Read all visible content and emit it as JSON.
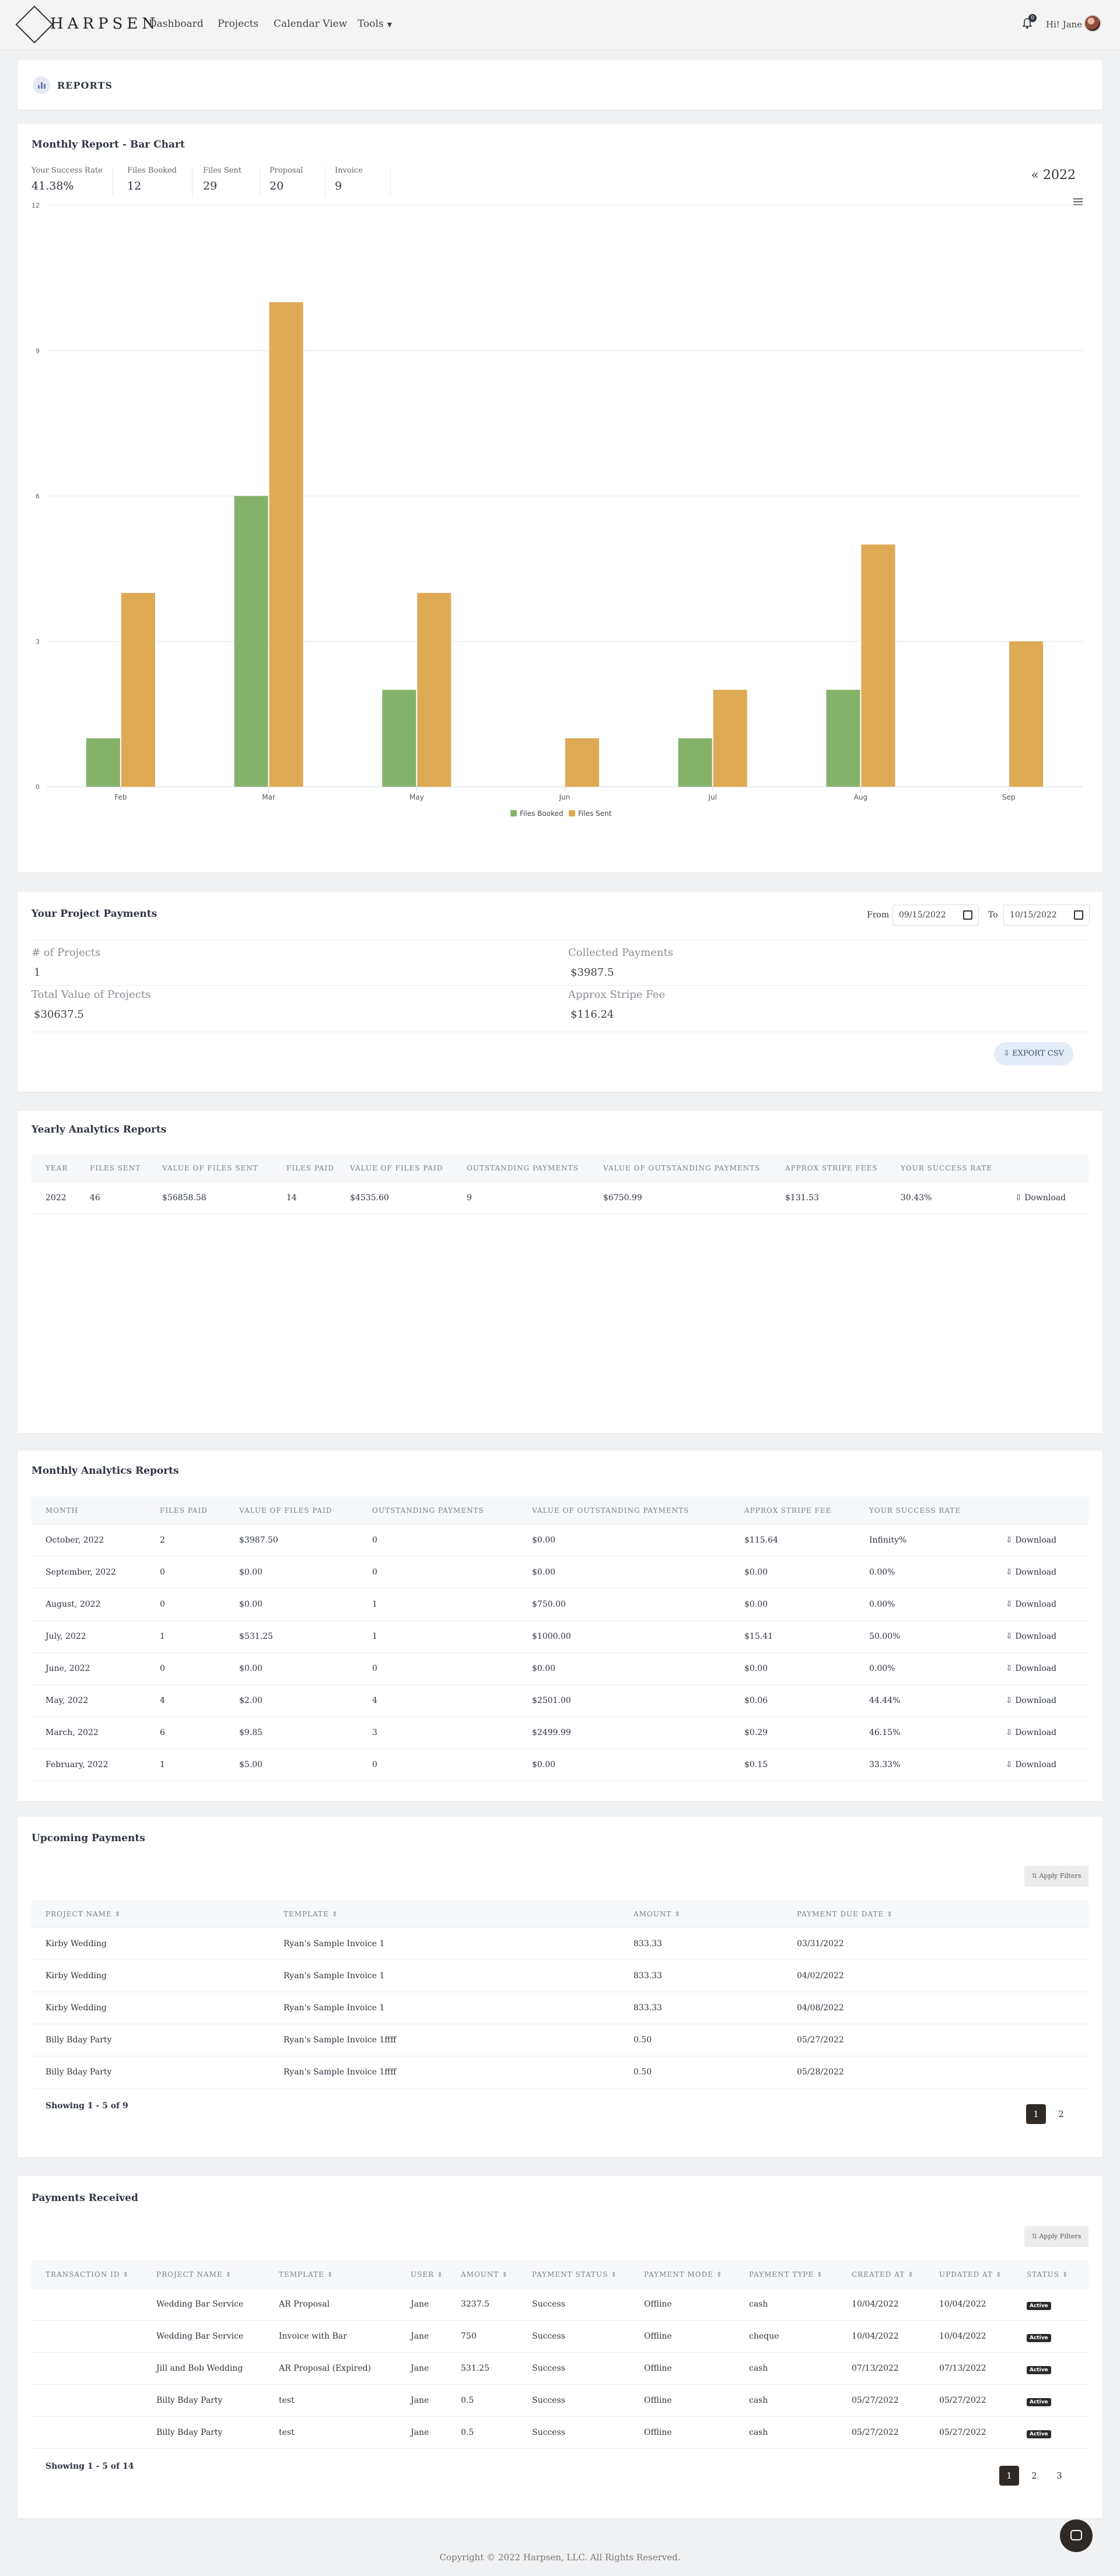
{
  "nav": {
    "logo": "HARPSEN",
    "links": [
      "Dashboard",
      "Projects",
      "Calendar View",
      "Tools"
    ],
    "notification_count": "0",
    "greeting": "Hi! Jane"
  },
  "reports_header": {
    "label": "REPORTS"
  },
  "monthly_chart_card": {
    "title": "Monthly Report - Bar Chart",
    "stats": [
      {
        "label": "Your Success Rate",
        "value": "41.38%"
      },
      {
        "label": "Files Booked",
        "value": "12"
      },
      {
        "label": "Files Sent",
        "value": "29"
      },
      {
        "label": "Proposal",
        "value": "20"
      },
      {
        "label": "Invoice",
        "value": "9"
      }
    ],
    "year": "« 2022"
  },
  "chart_data": {
    "type": "bar",
    "categories": [
      "Feb",
      "Mar",
      "May",
      "Jun",
      "Jul",
      "Aug",
      "Sep"
    ],
    "series": [
      {
        "name": "Files Booked",
        "color": "#84b26b",
        "values": [
          1,
          6,
          2,
          0,
          1,
          2,
          0
        ]
      },
      {
        "name": "Files Sent",
        "color": "#dfaa55",
        "values": [
          4,
          10,
          4,
          1,
          2,
          5,
          3
        ]
      }
    ],
    "yticks": [
      "0",
      "3",
      "6",
      "9",
      "12"
    ],
    "ylim": [
      0,
      12
    ],
    "legend": "bottom",
    "grid": true
  },
  "project_payments": {
    "title": "Your Project Payments",
    "from_label": "From",
    "from_value": "09/15/2022",
    "to_label": "To",
    "to_value": "10/15/2022",
    "projects_label": "# of Projects",
    "projects_value": "1",
    "collected_label": "Collected Payments",
    "collected_value": "$3987.5",
    "total_label": "Total Value of Projects",
    "total_value": "$30637.5",
    "stripe_label": "Approx Stripe Fee",
    "stripe_value": "$116.24",
    "export_label": "EXPORT CSV"
  },
  "yearly": {
    "title": "Yearly Analytics Reports",
    "headers": [
      "YEAR",
      "FILES SENT",
      "VALUE OF FILES SENT",
      "FILES PAID",
      "VALUE OF FILES PAID",
      "OUTSTANDING PAYMENTS",
      "VALUE OF OUTSTANDING PAYMENTS",
      "APPROX STRIPE FEES",
      "YOUR SUCCESS RATE"
    ],
    "rows": [
      {
        "c": [
          "2022",
          "46",
          "$56858.58",
          "14",
          "$4535.60",
          "9",
          "$6750.99",
          "$131.53",
          "30.43%"
        ],
        "action": "Download"
      }
    ]
  },
  "monthly": {
    "title": "Monthly Analytics Reports",
    "headers": [
      "MONTH",
      "FILES PAID",
      "VALUE OF FILES PAID",
      "OUTSTANDING PAYMENTS",
      "VALUE OF OUTSTANDING PAYMENTS",
      "APPROX STRIPE FEE",
      "YOUR SUCCESS RATE"
    ],
    "rows": [
      {
        "c": [
          "October, 2022",
          "2",
          "$3987.50",
          "0",
          "$0.00",
          "$115.64",
          "Infinity%"
        ],
        "action": "Download"
      },
      {
        "c": [
          "September, 2022",
          "0",
          "$0.00",
          "0",
          "$0.00",
          "$0.00",
          "0.00%"
        ],
        "action": "Download"
      },
      {
        "c": [
          "August, 2022",
          "0",
          "$0.00",
          "1",
          "$750.00",
          "$0.00",
          "0.00%"
        ],
        "action": "Download"
      },
      {
        "c": [
          "July, 2022",
          "1",
          "$531.25",
          "1",
          "$1000.00",
          "$15.41",
          "50.00%"
        ],
        "action": "Download"
      },
      {
        "c": [
          "June, 2022",
          "0",
          "$0.00",
          "0",
          "$0.00",
          "$0.00",
          "0.00%"
        ],
        "action": "Download"
      },
      {
        "c": [
          "May, 2022",
          "4",
          "$2.00",
          "4",
          "$2501.00",
          "$0.06",
          "44.44%"
        ],
        "action": "Download"
      },
      {
        "c": [
          "March, 2022",
          "6",
          "$9.85",
          "3",
          "$2499.99",
          "$0.29",
          "46.15%"
        ],
        "action": "Download"
      },
      {
        "c": [
          "February, 2022",
          "1",
          "$5.00",
          "0",
          "$0.00",
          "$0.15",
          "33.33%"
        ],
        "action": "Download"
      }
    ]
  },
  "upcoming": {
    "title": "Upcoming Payments",
    "filter_label": "Apply Filters",
    "headers": [
      "PROJECT NAME ⇕",
      "TEMPLATE ⇕",
      "AMOUNT ⇕",
      "PAYMENT DUE DATE ⇕"
    ],
    "rows": [
      {
        "c": [
          "Kirby Wedding",
          "Ryan's Sample Invoice 1",
          "833.33",
          "03/31/2022"
        ]
      },
      {
        "c": [
          "Kirby Wedding",
          "Ryan's Sample Invoice 1",
          "833.33",
          "04/02/2022"
        ]
      },
      {
        "c": [
          "Kirby Wedding",
          "Ryan's Sample Invoice 1",
          "833.33",
          "04/08/2022"
        ]
      },
      {
        "c": [
          "Billy Bday Party",
          "Ryan's Sample Invoice 1ffff",
          "0.50",
          "05/27/2022"
        ]
      },
      {
        "c": [
          "Billy Bday Party",
          "Ryan's Sample Invoice 1ffff",
          "0.50",
          "05/28/2022"
        ]
      }
    ],
    "showing": "Showing 1 - 5 of 9",
    "pages": [
      "1",
      "2"
    ]
  },
  "received": {
    "title": "Payments Received",
    "filter_label": "Apply Filters",
    "headers": [
      "TRANSACTION ID ⇕",
      "PROJECT NAME ⇕",
      "TEMPLATE ⇕",
      "USER ⇕",
      "AMOUNT ⇕",
      "PAYMENT STATUS ⇕",
      "PAYMENT MODE ⇕",
      "PAYMENT TYPE ⇕",
      "CREATED AT ⇕",
      "UPDATED AT ⇕",
      "STATUS ⇕"
    ],
    "rows": [
      {
        "c": [
          "",
          "Wedding Bar Service",
          "AR Proposal",
          "Jane",
          "3237.5",
          "Success",
          "Offline",
          "cash",
          "10/04/2022",
          "10/04/2022"
        ],
        "status": "Active"
      },
      {
        "c": [
          "",
          "Wedding Bar Service",
          "Invoice with Bar",
          "Jane",
          "750",
          "Success",
          "Offline",
          "cheque",
          "10/04/2022",
          "10/04/2022"
        ],
        "status": "Active"
      },
      {
        "c": [
          "",
          "Jill and Bob Wedding",
          "AR Proposal (Expired)",
          "Jane",
          "531.25",
          "Success",
          "Offline",
          "cash",
          "07/13/2022",
          "07/13/2022"
        ],
        "status": "Active"
      },
      {
        "c": [
          "",
          "Billy Bday Party",
          "test",
          "Jane",
          "0.5",
          "Success",
          "Offline",
          "cash",
          "05/27/2022",
          "05/27/2022"
        ],
        "status": "Active"
      },
      {
        "c": [
          "",
          "Billy Bday Party",
          "test",
          "Jane",
          "0.5",
          "Success",
          "Offline",
          "cash",
          "05/27/2022",
          "05/27/2022"
        ],
        "status": "Active"
      }
    ],
    "showing": "Showing 1 - 5 of 14",
    "pages": [
      "1",
      "2",
      "3"
    ]
  },
  "footer": "Copyright © 2022 Harpsen, LLC. All Rights Reserved."
}
